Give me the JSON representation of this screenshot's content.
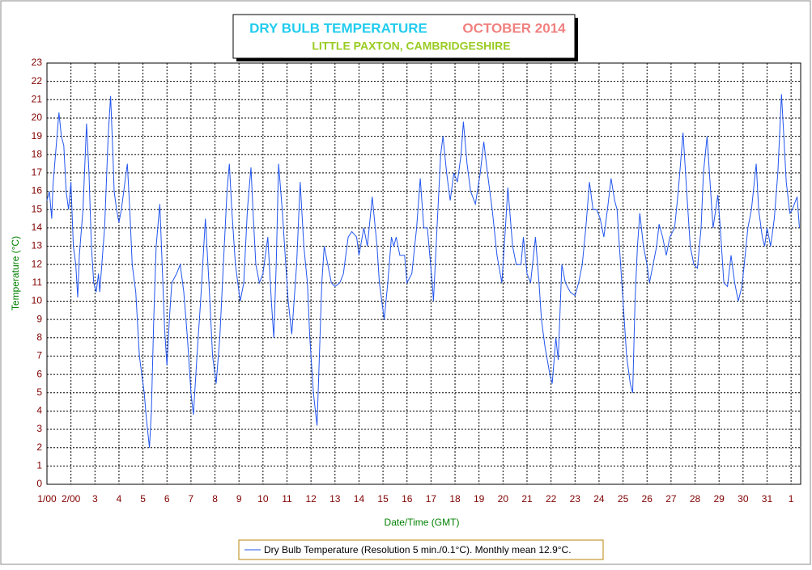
{
  "chart_data": {
    "type": "line",
    "title": "DRY BULB TEMPERATURE",
    "title_date": "OCTOBER 2014",
    "subtitle": "LITTLE PAXTON, CAMBRIDGESHIRE",
    "x_label": "Date/Time (GMT)",
    "y_label": "Temperature (°C)",
    "x": [
      1,
      1.1,
      1.2,
      1.25,
      1.5,
      1.6,
      1.7,
      1.8,
      1.9,
      2,
      2.1,
      2.2,
      2.28,
      2.35,
      2.5,
      2.65,
      2.75,
      2.85,
      2.95,
      3.05,
      3.15,
      3.2,
      3.4,
      3.55,
      3.65,
      3.75,
      3.8,
      3.9,
      4,
      4.1,
      4.35,
      4.45,
      4.55,
      4.65,
      4.7,
      4.85,
      5.05,
      5.15,
      5.27,
      5.35,
      5.45,
      5.55,
      5.7,
      5.8,
      5.9,
      6,
      6.1,
      6.2,
      6.4,
      6.55,
      6.7,
      6.85,
      7,
      7.1,
      7.25,
      7.4,
      7.6,
      7.75,
      7.9,
      8.05,
      8.2,
      8.35,
      8.5,
      8.6,
      8.7,
      8.85,
      9.05,
      9.2,
      9.35,
      9.5,
      9.6,
      9.7,
      9.85,
      10,
      10.2,
      10.35,
      10.45,
      10.55,
      10.65,
      10.8,
      10.95,
      11.05,
      11.2,
      11.4,
      11.55,
      11.7,
      11.85,
      11.95,
      12.1,
      12.25,
      12.35,
      12.45,
      12.55,
      12.7,
      12.85,
      13,
      13.2,
      13.35,
      13.45,
      13.55,
      13.7,
      13.9,
      14,
      14.2,
      14.35,
      14.55,
      14.75,
      14.85,
      15.05,
      15.2,
      15.35,
      15.45,
      15.55,
      15.7,
      15.9,
      16,
      16.2,
      16.4,
      16.55,
      16.7,
      16.85,
      17.05,
      17.1,
      17.25,
      17.4,
      17.5,
      17.65,
      17.8,
      17.95,
      18.1,
      18.25,
      18.35,
      18.5,
      18.65,
      18.85,
      19.05,
      19.2,
      19.35,
      19.55,
      19.75,
      19.95,
      20.1,
      20.2,
      20.4,
      20.55,
      20.75,
      20.85,
      21,
      21.15,
      21.35,
      21.5,
      21.6,
      21.75,
      21.95,
      22.05,
      22.2,
      22.3,
      22.45,
      22.6,
      22.8,
      23,
      23.15,
      23.3,
      23.45,
      23.6,
      23.75,
      23.9,
      24.05,
      24.2,
      24.35,
      24.5,
      24.65,
      24.75,
      24.85,
      25,
      25.15,
      25.3,
      25.4,
      25.5,
      25.6,
      25.7,
      25.85,
      26,
      26.1,
      26.25,
      26.4,
      26.5,
      26.65,
      26.8,
      26.95,
      27.15,
      27.3,
      27.5,
      27.65,
      27.8,
      27.95,
      28.1,
      28.25,
      28.35,
      28.5,
      28.6,
      28.75,
      28.95,
      29.05,
      29.2,
      29.35,
      29.5,
      29.65,
      29.8,
      29.95,
      30.05,
      30.2,
      30.35,
      30.55,
      30.65,
      30.8,
      30.9,
      31,
      31.15,
      31.3,
      31.45,
      31.6,
      31.7,
      31.8,
      31.95,
      32.05,
      32.25,
      32.35
    ],
    "series": [
      {
        "name": "Dry Bulb Temperature (Resolution 5 min./0.1°C). Monthly mean 12.9°C.",
        "color": "#2255ee",
        "values": [
          15.5,
          16,
          14.5,
          16.3,
          20.3,
          19,
          18.5,
          16,
          15,
          16.5,
          13,
          12,
          10.2,
          12.5,
          15,
          19.7,
          17,
          13,
          11,
          10.5,
          11.5,
          10.5,
          14,
          19,
          21.2,
          18,
          16,
          15,
          14.3,
          15,
          17.5,
          15,
          12,
          11,
          10.5,
          7,
          5,
          3.5,
          2,
          4,
          9,
          13,
          15.3,
          12,
          8.5,
          6.5,
          9,
          11,
          11.5,
          12,
          10.5,
          8,
          5,
          3.8,
          7,
          10,
          14.5,
          11,
          7,
          5.5,
          8,
          12,
          16,
          17.5,
          15,
          12,
          10,
          11,
          15,
          17.3,
          14.5,
          12,
          11,
          11.5,
          13.5,
          10,
          8,
          12,
          17.5,
          15,
          12,
          10,
          8.2,
          12,
          16.5,
          13,
          11,
          8,
          5,
          3.2,
          7,
          11,
          13,
          12,
          11,
          10.8,
          11,
          11.5,
          12.5,
          13.5,
          13.8,
          13.5,
          12.5,
          14,
          13,
          15.7,
          13,
          11,
          9,
          11,
          13.5,
          13,
          13.5,
          12.5,
          12.5,
          11,
          11.5,
          14,
          16.7,
          14,
          14,
          11,
          10,
          14,
          18,
          19,
          17,
          15.5,
          17,
          16.5,
          18,
          19.8,
          17.5,
          16,
          15.3,
          17,
          18.7,
          17,
          15,
          12.5,
          11,
          14,
          16.2,
          13,
          12,
          12,
          13.5,
          11.5,
          11,
          13.5,
          11,
          9,
          7.5,
          6,
          5.5,
          8,
          6.8,
          12,
          11,
          10.5,
          10.3,
          11,
          12,
          14,
          16.5,
          15,
          15,
          14.5,
          13.5,
          15,
          16.7,
          15.5,
          15,
          13,
          10,
          7,
          5.5,
          5,
          10,
          13,
          14.8,
          13,
          12,
          11,
          12,
          13,
          14.2,
          13.5,
          12.5,
          13.5,
          14,
          16,
          19.2,
          16,
          13,
          12,
          11.8,
          14,
          17,
          19,
          17,
          14,
          15.8,
          14,
          11,
          10.8,
          12.5,
          11,
          10,
          10.8,
          12,
          14,
          15,
          17.5,
          15,
          13.5,
          13,
          14,
          13,
          14.5,
          17,
          21.3,
          19,
          16.5,
          14.8,
          15,
          15.7,
          14
        ]
      }
    ],
    "xlim": [
      1,
      32.4
    ],
    "ylim": [
      0,
      23
    ],
    "xticks": [
      {
        "value": 1,
        "label": "1/00"
      },
      {
        "value": 2,
        "label": "2/00"
      },
      3,
      4,
      5,
      6,
      7,
      8,
      9,
      10,
      11,
      12,
      13,
      14,
      15,
      16,
      17,
      18,
      19,
      20,
      21,
      22,
      23,
      24,
      25,
      26,
      27,
      28,
      29,
      30,
      31,
      {
        "value": 32,
        "label": "1"
      }
    ],
    "yticks": [
      0,
      1,
      2,
      3,
      4,
      5,
      6,
      7,
      8,
      9,
      10,
      11,
      12,
      13,
      14,
      15,
      16,
      17,
      18,
      19,
      20,
      21,
      22,
      23
    ],
    "grid": true
  }
}
